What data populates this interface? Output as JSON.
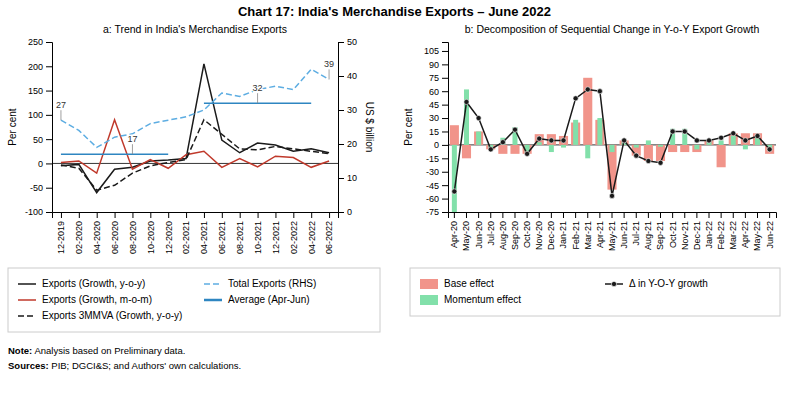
{
  "title": "Chart 17: India's Merchandise Exports – June 2022",
  "annotations": [
    "Note: Analysis based on Preliminary data.",
    "Sources: PIB; DGCI&S; and Authors' own calculations."
  ],
  "chart_data": [
    {
      "type": "line",
      "title": "a: Trend in India's Merchandise Exports",
      "categories": [
        "12-2019",
        "02-2020",
        "04-2020",
        "06-2020",
        "08-2020",
        "10-2020",
        "12-2020",
        "02-2021",
        "04-2021",
        "06-2021",
        "08-2021",
        "10-2021",
        "12-2021",
        "02-2022",
        "04-2022",
        "06-2022"
      ],
      "series": [
        {
          "name": "Exports (Growth, y-o-y)",
          "color": "#1a1a1a",
          "values": [
            -5,
            -2,
            -60,
            -12,
            -8,
            5,
            7,
            10,
            205,
            48,
            22,
            42,
            38,
            25,
            30,
            22
          ]
        },
        {
          "name": "Exports (Growth, m-o-m)",
          "color": "#c0392b",
          "values": [
            2,
            5,
            -20,
            90,
            -12,
            8,
            -10,
            18,
            25,
            -8,
            10,
            -7,
            15,
            12,
            -8,
            5
          ]
        },
        {
          "name": "Exports 3MMVA (Growth, y-o-y)",
          "color": "#1a1a1a",
          "line_style": "dashed",
          "values": [
            -3,
            -10,
            -55,
            -45,
            -20,
            -5,
            2,
            8,
            90,
            60,
            30,
            28,
            35,
            30,
            25,
            20
          ]
        },
        {
          "name": "Total Exports (RHS)",
          "color": "#5dade2",
          "line_style": "dashed",
          "axis": "y2",
          "values": [
            27,
            24,
            19,
            22,
            23,
            26,
            27,
            28,
            30,
            35,
            34,
            36,
            37,
            36,
            42,
            39
          ]
        },
        {
          "name": "Average (Apr-Jun)",
          "color": "#2e86c1",
          "axis": "y2",
          "values": [
            17,
            17,
            17,
            17,
            17,
            17,
            17,
            null,
            32,
            32,
            32,
            32,
            32,
            32,
            32,
            null
          ]
        }
      ],
      "ylim": [
        -100,
        250
      ],
      "yticks": [
        -100,
        -50,
        0,
        50,
        100,
        150,
        200,
        250
      ],
      "y2lim": [
        0,
        50
      ],
      "y2ticks": [
        0,
        10,
        20,
        30,
        40,
        50
      ],
      "ylabel": "Per cent",
      "y2label": "US $ billion",
      "annotations": [
        {
          "text": "27",
          "x": "12-2019",
          "y": 27,
          "axis": "y2"
        },
        {
          "text": "17",
          "x": "08-2020",
          "y": 17,
          "axis": "y2"
        },
        {
          "text": "32",
          "x": "10-2021",
          "y": 32,
          "axis": "y2"
        },
        {
          "text": "39",
          "x": "06-2022",
          "y": 39,
          "axis": "y2"
        }
      ],
      "grid": false,
      "legend": "bottom"
    },
    {
      "type": "bar",
      "title": "b: Decomposition of Sequential Change in Y-o-Y Export Growth",
      "categories": [
        "Apr-20",
        "May-20",
        "Jun-20",
        "Jul-20",
        "Aug-20",
        "Sep-20",
        "Oct-20",
        "Nov-20",
        "Dec-20",
        "Jan-21",
        "Feb-21",
        "Mar-21",
        "Apr-21",
        "May-21",
        "Jun-21",
        "Jul-21",
        "Aug-21",
        "Sep-21",
        "Oct-21",
        "Nov-21",
        "Dec-21",
        "Jan-22",
        "Feb-22",
        "Mar-22",
        "Apr-22",
        "May-22",
        "Jun-22"
      ],
      "series": [
        {
          "name": "Base effect",
          "type": "bar",
          "color": "#f1948a",
          "values": [
            22,
            -15,
            15,
            -5,
            -10,
            -10,
            -10,
            12,
            12,
            10,
            25,
            75,
            28,
            -50,
            5,
            -12,
            -18,
            -18,
            -8,
            -8,
            -8,
            5,
            -25,
            13,
            13,
            13,
            -10
          ]
        },
        {
          "name": "Momentum effect",
          "type": "bar",
          "color": "#82e0aa",
          "values": [
            -75,
            62,
            15,
            -3,
            8,
            20,
            -8,
            3,
            -8,
            -3,
            28,
            -15,
            30,
            -8,
            3,
            -3,
            5,
            -2,
            18,
            18,
            -5,
            5,
            5,
            10,
            -5,
            8,
            -5
          ]
        },
        {
          "name": "Δ in Y-O-Y growth",
          "type": "line",
          "color": "#1a1a1a",
          "marker": "circle",
          "values": [
            -52,
            48,
            30,
            -5,
            3,
            17,
            -10,
            7,
            5,
            5,
            52,
            62,
            60,
            -57,
            5,
            -12,
            -18,
            -20,
            15,
            15,
            5,
            5,
            8,
            13,
            5,
            10,
            -5
          ]
        }
      ],
      "ylim": [
        -75,
        115
      ],
      "yticks": [
        -75,
        -60,
        -45,
        -30,
        -15,
        0,
        15,
        30,
        45,
        60,
        75,
        90,
        105
      ],
      "ylabel": "Per cent",
      "stacked": false,
      "grid": false,
      "legend": "bottom"
    }
  ]
}
